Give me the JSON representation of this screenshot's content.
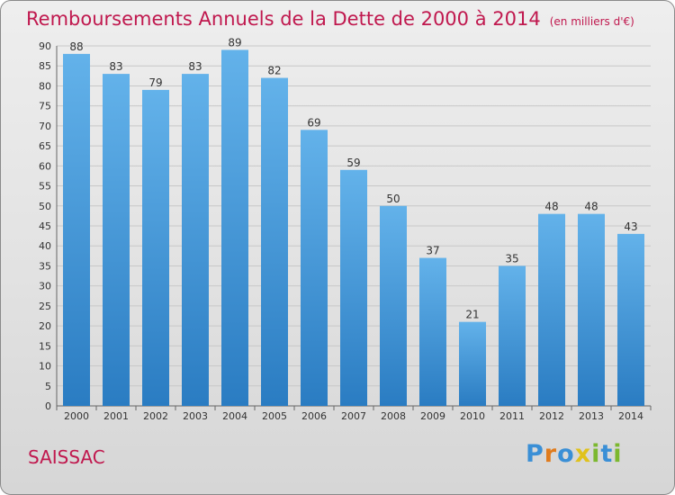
{
  "header": {
    "title": "Remboursements Annuels de la Dette de 2000 à 2014",
    "subtitle": "(en milliers d'€)"
  },
  "footer": {
    "commune": "SAISSAC",
    "logo": "Proxiti"
  },
  "colors": {
    "title": "#c0184e",
    "bar_top": "#63b2ea",
    "bar_bottom": "#2a7cc2",
    "grid": "#c8c8c8",
    "logo_letters": [
      "#3a8fd6",
      "#e07b1c",
      "#3a8fd6",
      "#e0c21c",
      "#7cb82f",
      "#3a8fd6",
      "#7cb82f"
    ]
  },
  "chart_data": {
    "type": "bar",
    "title": "Remboursements Annuels de la Dette de 2000 à 2014",
    "subtitle": "(en milliers d'€)",
    "xlabel": "",
    "ylabel": "",
    "categories": [
      "2000",
      "2001",
      "2002",
      "2003",
      "2004",
      "2005",
      "2006",
      "2007",
      "2008",
      "2009",
      "2010",
      "2011",
      "2012",
      "2013",
      "2014"
    ],
    "values": [
      88,
      83,
      79,
      83,
      89,
      82,
      69,
      59,
      50,
      37,
      21,
      35,
      48,
      48,
      43
    ],
    "ylim": [
      0,
      90
    ],
    "yticks": [
      0,
      5,
      10,
      15,
      20,
      25,
      30,
      35,
      40,
      45,
      50,
      55,
      60,
      65,
      70,
      75,
      80,
      85,
      90
    ],
    "grid": true,
    "legend": "none"
  }
}
